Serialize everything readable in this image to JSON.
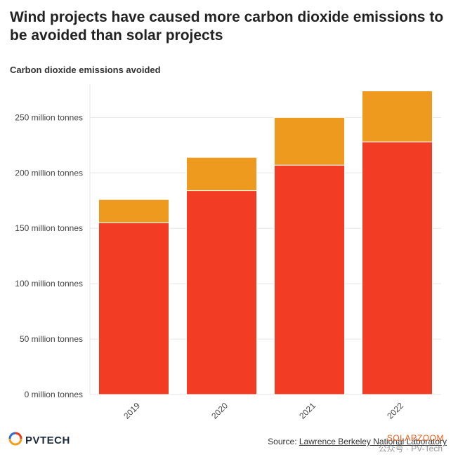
{
  "title": "Wind projects have caused more carbon dioxide emissions to be avoided than solar projects",
  "subtitle": "Carbon dioxide emissions avoided",
  "colors": {
    "wind": "#f23d24",
    "solar": "#ee9a1e",
    "grid": "#e6e6e6",
    "axis_text": "#444444"
  },
  "chart_data": {
    "type": "bar",
    "stacked": true,
    "categories": [
      "2019",
      "2020",
      "2021",
      "2022"
    ],
    "series": [
      {
        "values": [
          155,
          184,
          207,
          228
        ]
      },
      {
        "values": [
          21,
          30,
          43,
          46
        ]
      }
    ],
    "y_ticks": [
      0,
      50,
      100,
      150,
      200,
      250
    ],
    "y_tick_labels": [
      "0 million tonnes",
      "50 million tonnes",
      "100 million tonnes",
      "150 million tonnes",
      "200 million tonnes",
      "250 million tonnes"
    ],
    "ylim": [
      0,
      280
    ],
    "grid": true,
    "legend": "none"
  },
  "footer": {
    "logo_text": "PVTECH",
    "logo_icon": "pv-tech-swirl-icon",
    "source_prefix": "Source: ",
    "source_link": "Lawrence Berkeley National Laboratory",
    "watermark_brand": "SOLARZOOM",
    "watermark_account": "公众号 · PV-Tech"
  }
}
